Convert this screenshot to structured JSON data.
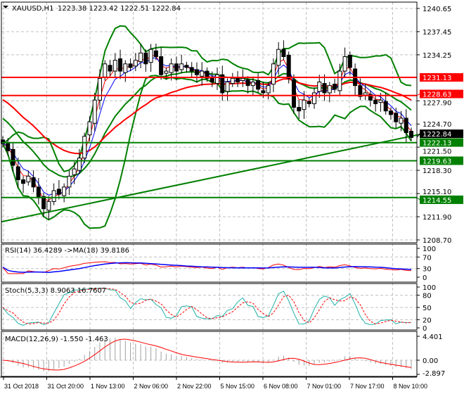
{
  "header": {
    "symbol": "XAUUSD,H1",
    "ohlc": "1223.38 1223.42 1222.51 1222.84"
  },
  "indicators": {
    "rsi": "RSI(14) 36.4289  ->MA(18) 39.8186",
    "stoch": "Stoch(5,3,3) 8.9063 16.7607",
    "macd": "MACD(12,26,9) -1.550 -1.463"
  },
  "colors": {
    "up_level": "#ff0000",
    "down_level": "#008000",
    "bollinger": "#008000",
    "ma_fast": "#ff0000",
    "ma_slow": "#0000ff",
    "rsi": "#ff0000",
    "rsi_ma": "#0000ff",
    "stoch_main": "#20b2aa",
    "stoch_signal": "#ff0000",
    "macd_signal": "#ff0000",
    "macd_hist": "#a0a0a0"
  },
  "chart_data": {
    "type": "candlestick",
    "ylim": [
      1208.7,
      1240.65
    ],
    "price_ticks": [
      "1240.65",
      "1237.45",
      "1234.25",
      "1227.90",
      "1224.70",
      "1221.50",
      "1218.30",
      "1215.10",
      "1211.90",
      "1208.70"
    ],
    "current_price": "1222.84",
    "levels": [
      {
        "value": "1231.13",
        "color": "red"
      },
      {
        "value": "1228.63",
        "color": "red"
      },
      {
        "value": "1222.13",
        "color": "green"
      },
      {
        "value": "1219.63",
        "color": "green"
      },
      {
        "value": "1214.55",
        "color": "green"
      }
    ],
    "trendline": [
      1211.2,
      1223.3
    ],
    "closes": [
      1222,
      1221,
      1219,
      1217,
      1216.5,
      1217.5,
      1216,
      1214.5,
      1213,
      1214,
      1215.5,
      1215,
      1216,
      1217.5,
      1218.5,
      1220,
      1223,
      1225,
      1228,
      1231,
      1233,
      1232,
      1233.5,
      1232,
      1233,
      1232.5,
      1233.5,
      1234.5,
      1233,
      1235,
      1234,
      1231.5,
      1232,
      1233,
      1232,
      1233,
      1232.5,
      1232,
      1231.5,
      1232,
      1231,
      1230.5,
      1231.5,
      1229,
      1230.5,
      1231,
      1230.5,
      1231,
      1230,
      1230.5,
      1229.5,
      1229,
      1230,
      1233,
      1235,
      1234,
      1231,
      1227,
      1226.5,
      1228,
      1227.5,
      1229,
      1230.5,
      1229,
      1230,
      1229.5,
      1232,
      1234,
      1232.5,
      1230,
      1228.5,
      1229,
      1228,
      1227.5,
      1228,
      1226.5,
      1226,
      1225,
      1225.5,
      1223.5,
      1222.84
    ],
    "time_labels": [
      "31 Oct 2018",
      "31 Oct 20:00",
      "1 Nov 13:00",
      "2 Nov 06:00",
      "2 Nov 22:00",
      "5 Nov 15:00",
      "6 Nov 08:00",
      "7 Nov 01:00",
      "7 Nov 17:00",
      "8 Nov 10:00"
    ],
    "rsi_ticks": [
      "100",
      "70",
      "30",
      "0"
    ],
    "stoch_ticks": [
      "100",
      "80",
      "50",
      "20",
      "0"
    ],
    "macd_ticks": [
      "4.401",
      "0.00",
      "-2.897"
    ]
  }
}
